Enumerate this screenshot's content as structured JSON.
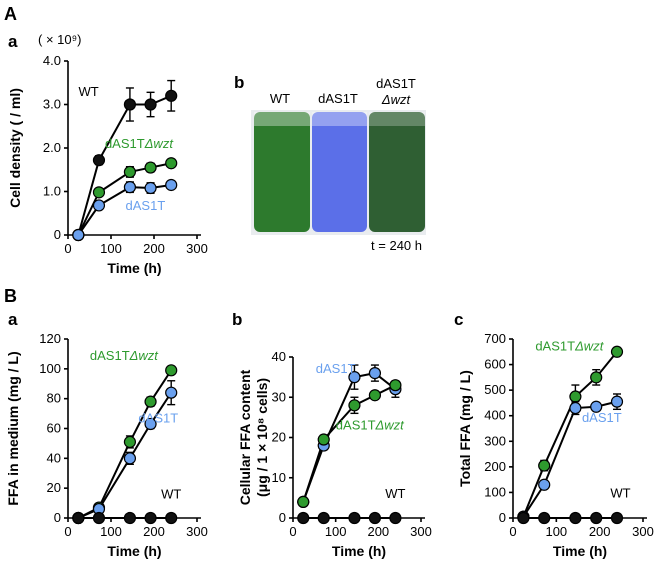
{
  "panel_labels": {
    "A": "A",
    "B": "B",
    "Aa": "a",
    "Ab": "b",
    "Ba": "a",
    "Bb": "b",
    "Bc": "c"
  },
  "colors": {
    "WT": "#111111",
    "dAS1T": "#6aa0ee",
    "dAS1T_wzt": "#2e9a2e",
    "line": "#000000"
  },
  "photo": {
    "labels": [
      "WT",
      "dAS1T",
      "dAS1T"
    ],
    "label_sub": "Δwzt",
    "caption": "t = 240 h",
    "tube_colors": [
      "#2d7a2d",
      "#5b6fe8",
      "#2f5f33"
    ]
  },
  "chart_data": [
    {
      "id": "Aa",
      "type": "line",
      "title": "",
      "multiplier": "( × 10⁹)",
      "xlabel": "Time (h)",
      "ylabel": "Cell density ( / ml)",
      "xlim": [
        0,
        300
      ],
      "ylim": [
        0,
        4
      ],
      "xticks": [
        "0",
        "100",
        "200",
        "300"
      ],
      "yticks": [
        "0",
        "1.0",
        "2.0",
        "3.0",
        "4.0"
      ],
      "series": [
        {
          "name": "WT",
          "color": "#111111",
          "x": [
            24,
            72,
            144,
            192,
            240
          ],
          "y": [
            0.0,
            1.72,
            3.0,
            3.0,
            3.2
          ],
          "err": [
            0.05,
            0.1,
            0.38,
            0.28,
            0.35
          ],
          "label": "WT",
          "label_x": 48,
          "label_y": 3.2
        },
        {
          "name": "dAS1TΔwzt",
          "color": "#2e9a2e",
          "x": [
            24,
            72,
            144,
            192,
            240
          ],
          "y": [
            0.0,
            0.98,
            1.45,
            1.55,
            1.65
          ],
          "err": [
            0.03,
            0.05,
            0.12,
            0.1,
            0.08
          ],
          "label": "dAS1TΔwzt",
          "label_x": 165,
          "label_y": 2.0
        },
        {
          "name": "dAS1T",
          "color": "#6aa0ee",
          "x": [
            24,
            72,
            144,
            192,
            240
          ],
          "y": [
            0.0,
            0.68,
            1.1,
            1.08,
            1.15
          ],
          "err": [
            0.03,
            0.05,
            0.12,
            0.12,
            0.06
          ],
          "label": "dAS1T",
          "label_x": 180,
          "label_y": 0.58
        }
      ]
    },
    {
      "id": "Ba",
      "type": "line",
      "xlabel": "Time (h)",
      "ylabel": "FFA in medium (mg / L)",
      "xlim": [
        0,
        300
      ],
      "ylim": [
        0,
        120
      ],
      "xticks": [
        "0",
        "100",
        "200",
        "300"
      ],
      "yticks": [
        "0",
        "20",
        "40",
        "60",
        "80",
        "100",
        "120"
      ],
      "series": [
        {
          "name": "dAS1TΔwzt",
          "color": "#2e9a2e",
          "x": [
            24,
            72,
            144,
            192,
            240
          ],
          "y": [
            0,
            7,
            51,
            78,
            99
          ],
          "err": [
            1,
            2,
            4,
            3,
            2
          ],
          "label": "dAS1TΔwzt",
          "label_x": 130,
          "label_y": 106
        },
        {
          "name": "dAS1T",
          "color": "#6aa0ee",
          "x": [
            24,
            72,
            144,
            192,
            240
          ],
          "y": [
            0,
            6,
            40,
            63,
            84
          ],
          "err": [
            1,
            2,
            4,
            3,
            8
          ],
          "label": "dAS1T",
          "label_x": 210,
          "label_y": 64
        },
        {
          "name": "WT",
          "color": "#111111",
          "x": [
            24,
            72,
            144,
            192,
            240
          ],
          "y": [
            0,
            0,
            0,
            0,
            0
          ],
          "err": [
            0,
            0,
            0,
            0,
            0
          ],
          "label": "WT",
          "label_x": 240,
          "label_y": 13
        }
      ]
    },
    {
      "id": "Bb",
      "type": "line",
      "xlabel": "Time (h)",
      "ylabel": "Cellular FFA content (μg / 1 × 10⁸ cells)",
      "xlim": [
        0,
        300
      ],
      "ylim": [
        0,
        40
      ],
      "xticks": [
        "0",
        "100",
        "200",
        "300"
      ],
      "yticks": [
        "0",
        "10",
        "20",
        "30",
        "40"
      ],
      "series": [
        {
          "name": "dAS1T",
          "color": "#6aa0ee",
          "x": [
            24,
            72,
            144,
            192,
            240
          ],
          "y": [
            4,
            18,
            35,
            36,
            32
          ],
          "err": [
            0.3,
            1,
            3,
            2,
            2
          ],
          "label": "dAS1T",
          "label_x": 100,
          "label_y": 36
        },
        {
          "name": "dAS1TΔwzt",
          "color": "#2e9a2e",
          "x": [
            24,
            72,
            144,
            192,
            240
          ],
          "y": [
            4,
            19.5,
            28,
            30.5,
            33
          ],
          "err": [
            0.3,
            1,
            2,
            1,
            1
          ],
          "label": "dAS1TΔwzt",
          "label_x": 180,
          "label_y": 22
        },
        {
          "name": "WT",
          "color": "#111111",
          "x": [
            24,
            72,
            144,
            192,
            240
          ],
          "y": [
            0,
            0,
            0,
            0,
            0
          ],
          "err": [
            0,
            0,
            0,
            0,
            0
          ],
          "label": "WT",
          "label_x": 240,
          "label_y": 5
        }
      ]
    },
    {
      "id": "Bc",
      "type": "line",
      "xlabel": "Time (h)",
      "ylabel": "Total FFA (mg / L)",
      "xlim": [
        0,
        300
      ],
      "ylim": [
        0,
        700
      ],
      "xticks": [
        "0",
        "100",
        "200",
        "300"
      ],
      "yticks": [
        "0",
        "100",
        "200",
        "300",
        "400",
        "500",
        "600",
        "700"
      ],
      "series": [
        {
          "name": "dAS1TΔwzt",
          "color": "#2e9a2e",
          "x": [
            24,
            72,
            144,
            192,
            240
          ],
          "y": [
            5,
            205,
            475,
            550,
            650
          ],
          "err": [
            3,
            20,
            45,
            30,
            10
          ],
          "label": "dAS1TΔwzt",
          "label_x": 130,
          "label_y": 655
        },
        {
          "name": "dAS1T",
          "color": "#6aa0ee",
          "x": [
            24,
            72,
            144,
            192,
            240
          ],
          "y": [
            5,
            130,
            430,
            435,
            455
          ],
          "err": [
            3,
            10,
            25,
            15,
            30
          ],
          "label": "dAS1T",
          "label_x": 205,
          "label_y": 375
        },
        {
          "name": "WT",
          "color": "#111111",
          "x": [
            24,
            72,
            144,
            192,
            240
          ],
          "y": [
            0,
            0,
            0,
            0,
            0
          ],
          "err": [
            0,
            0,
            0,
            0,
            0
          ],
          "label": "WT",
          "label_x": 248,
          "label_y": 80
        }
      ]
    }
  ]
}
